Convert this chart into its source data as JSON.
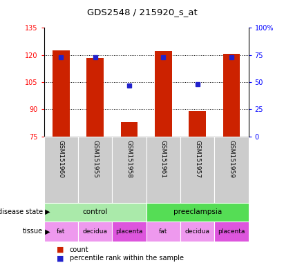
{
  "title": "GDS2548 / 215920_s_at",
  "samples": [
    "GSM151960",
    "GSM151955",
    "GSM151958",
    "GSM151961",
    "GSM151957",
    "GSM151959"
  ],
  "counts": [
    122.5,
    118.5,
    83.0,
    122.0,
    89.0,
    120.5
  ],
  "percentiles": [
    73,
    73,
    47,
    73,
    48,
    73
  ],
  "y_min": 75,
  "y_max": 135,
  "y_ticks": [
    75,
    90,
    105,
    120,
    135
  ],
  "y2_ticks": [
    0,
    25,
    50,
    75,
    100
  ],
  "y2_labels": [
    "0",
    "25",
    "50",
    "75",
    "100%"
  ],
  "bar_color": "#cc2200",
  "dot_color": "#2222cc",
  "disease_spans": [
    {
      "label": "control",
      "start": 0,
      "end": 3,
      "color": "#aaeaaa"
    },
    {
      "label": "preeclampsia",
      "start": 3,
      "end": 6,
      "color": "#55dd55"
    }
  ],
  "tissue": [
    "fat",
    "decidua",
    "placenta",
    "fat",
    "decidua",
    "placenta"
  ],
  "tissue_colors": {
    "fat": "#ee99ee",
    "decidua": "#ee99ee",
    "placenta": "#dd55dd"
  },
  "sample_bg_color": "#cccccc",
  "plot_bg": "#ffffff",
  "legend_items": [
    {
      "label": "count",
      "color": "#cc2200"
    },
    {
      "label": "percentile rank within the sample",
      "color": "#2222cc"
    }
  ]
}
